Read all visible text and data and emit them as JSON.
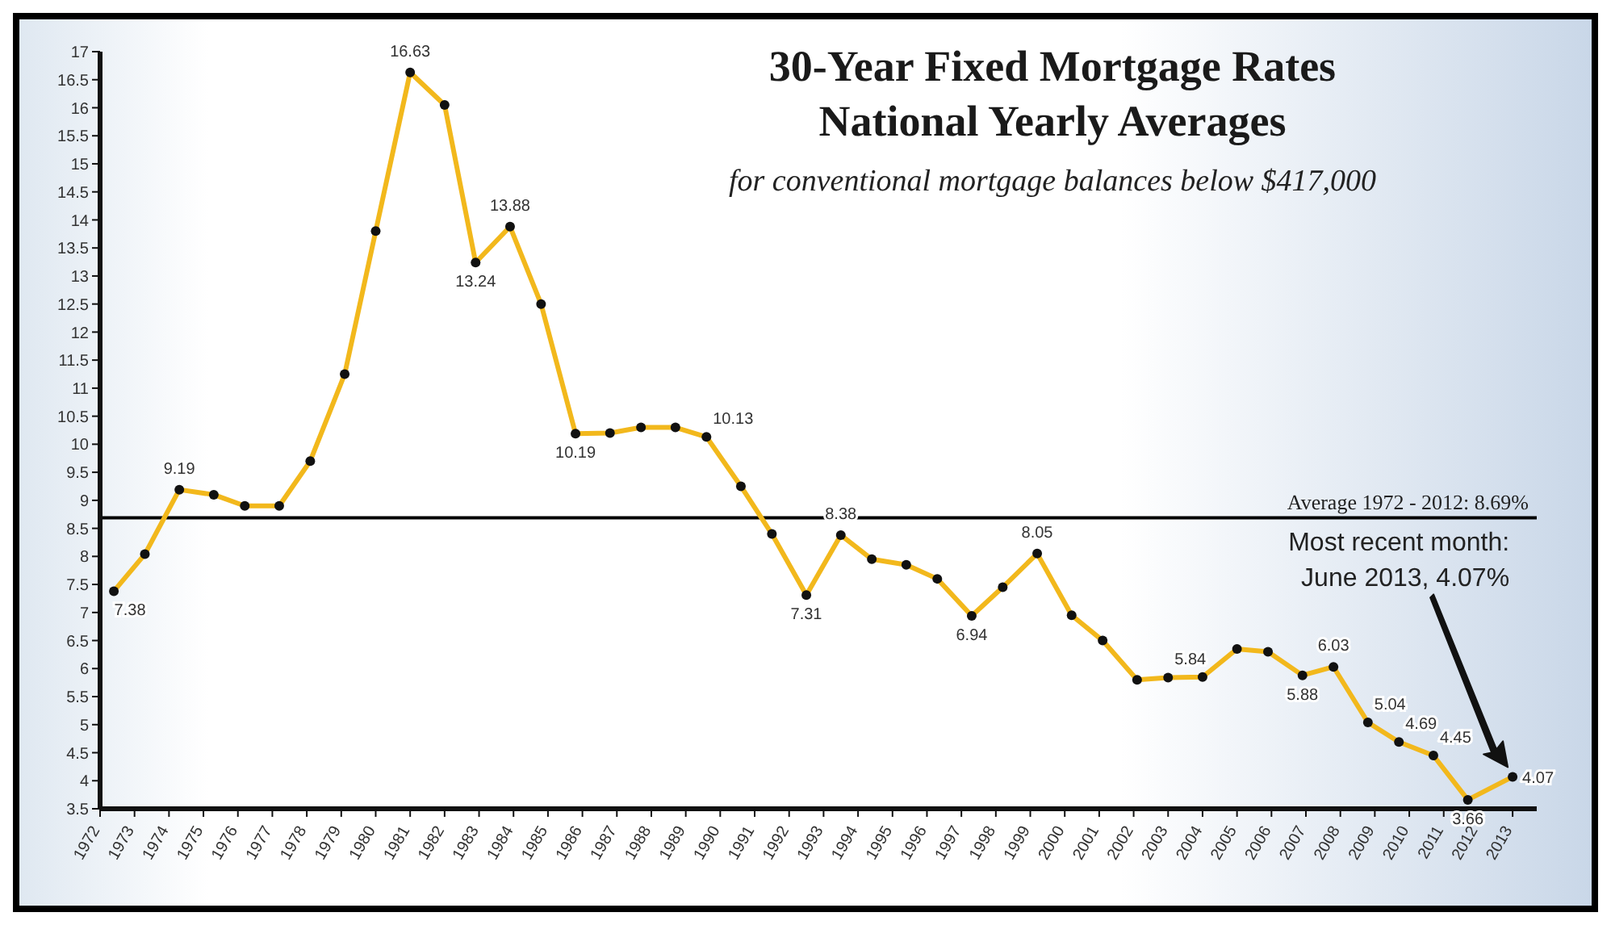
{
  "chart_data": {
    "type": "line",
    "title": "30-Year Fixed Mortgage Rates\nNational Yearly Averages",
    "subtitle": "for conventional mortgage balances below $417,000",
    "x": [
      1972.4,
      1973.3,
      1974.3,
      1975.3,
      1976.2,
      1977.2,
      1978.1,
      1979.1,
      1980.0,
      1981.0,
      1982.0,
      1982.9,
      1983.9,
      1984.8,
      1985.8,
      1986.8,
      1987.7,
      1988.7,
      1989.6,
      1990.6,
      1991.5,
      1992.5,
      1993.5,
      1994.4,
      1995.4,
      1996.3,
      1997.3,
      1998.2,
      1999.2,
      2000.2,
      2001.1,
      2002.1,
      2003.0,
      2004.0,
      2005.0,
      2005.9,
      2006.9,
      2007.8,
      2008.8,
      2009.7,
      2010.7,
      2011.7,
      2013.0
    ],
    "series": [
      {
        "color": "#f2b81c",
        "values": [
          7.38,
          8.04,
          9.19,
          9.1,
          8.9,
          8.9,
          9.7,
          11.25,
          13.8,
          16.63,
          16.05,
          13.24,
          13.88,
          12.5,
          10.19,
          10.2,
          10.3,
          10.3,
          10.13,
          9.25,
          8.4,
          7.31,
          8.38,
          7.95,
          7.85,
          7.6,
          6.94,
          7.45,
          8.05,
          6.95,
          6.5,
          5.8,
          5.84,
          5.85,
          6.35,
          6.3,
          5.88,
          6.03,
          5.04,
          4.69,
          4.45,
          3.66,
          4.07
        ],
        "value_labels": [
          "7.38",
          null,
          "9.19",
          null,
          null,
          null,
          null,
          null,
          null,
          "16.63",
          null,
          "13.24",
          "13.88",
          null,
          "10.19",
          null,
          null,
          null,
          "10.13",
          null,
          null,
          "7.31",
          "8.38",
          null,
          null,
          null,
          "6.94",
          null,
          "8.05",
          null,
          null,
          null,
          "5.84",
          null,
          null,
          null,
          "5.88",
          "6.03",
          "5.04",
          "4.69",
          "4.45",
          "3.66",
          "4.07"
        ]
      }
    ],
    "xlim": [
      1972,
      2013.7
    ],
    "xticks": [
      1972,
      1973,
      1974,
      1975,
      1976,
      1977,
      1978,
      1979,
      1980,
      1981,
      1982,
      1983,
      1984,
      1985,
      1986,
      1987,
      1988,
      1989,
      1990,
      1991,
      1992,
      1993,
      1994,
      1995,
      1996,
      1997,
      1998,
      1999,
      2000,
      2001,
      2002,
      2003,
      2004,
      2005,
      2006,
      2007,
      2008,
      2009,
      2010,
      2011,
      2012,
      2013
    ],
    "ylim": [
      3.5,
      17
    ],
    "yticks": [
      3.5,
      4,
      4.5,
      5,
      5.5,
      6,
      6.5,
      7,
      7.5,
      8,
      8.5,
      9,
      9.5,
      10,
      10.5,
      11,
      11.5,
      12,
      12.5,
      13,
      13.5,
      14,
      14.5,
      15,
      15.5,
      16,
      16.5,
      17
    ],
    "ref_lines": [
      {
        "axis": "y",
        "value": 8.69,
        "label": "Average 1972 - 2012: 8.69%",
        "color": "#000000"
      }
    ],
    "annotations": [
      "Most recent month:\nJune 2013, 4.07%"
    ],
    "marker": "circle"
  }
}
